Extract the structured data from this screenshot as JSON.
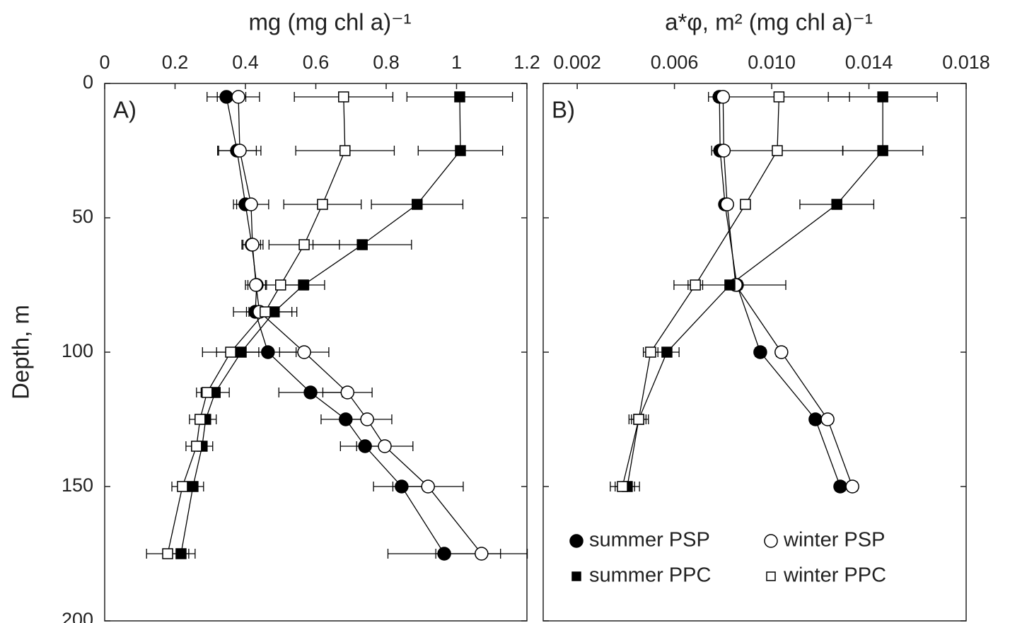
{
  "chart_data": [
    {
      "type": "line",
      "panel_label": "A)",
      "xlabel": "mg (mg chl a)⁻¹",
      "ylabel": "Depth, m",
      "xlim": [
        0,
        1.2
      ],
      "xticks": [
        0,
        0.2,
        0.4,
        0.6,
        0.8,
        1,
        1.2
      ],
      "ylim": [
        0,
        200
      ],
      "yticks": [
        0,
        50,
        100,
        150,
        200
      ],
      "y_inverted": true,
      "show_ytick_labels": true,
      "y": [
        5,
        25,
        45,
        60,
        75,
        85,
        100,
        115,
        125,
        135,
        150,
        175
      ],
      "series": [
        {
          "marker": "circle",
          "color": "#000000",
          "fill": "#000000",
          "values": [
            0.346,
            0.376,
            0.4,
            0.418,
            0.432,
            0.428,
            0.464,
            0.585,
            0.685,
            0.74,
            0.844,
            0.965
          ],
          "errors": [
            0.055,
            0.055,
            0.025,
            0.025,
            0.025,
            0.025,
            0.08,
            0.09,
            0.07,
            0.07,
            0.08,
            0.16
          ]
        },
        {
          "marker": "circle",
          "color": "#000000",
          "fill": "#ffffff",
          "values": [
            0.38,
            0.384,
            0.416,
            0.42,
            0.43,
            0.44,
            0.567,
            0.69,
            0.746,
            0.796,
            0.919,
            1.071
          ],
          "errors": [
            0.06,
            0.06,
            0.05,
            0.03,
            0.03,
            0.03,
            0.07,
            0.07,
            0.07,
            0.08,
            0.1,
            0.13
          ]
        },
        {
          "marker": "square",
          "color": "#000000",
          "fill": "#000000",
          "values": [
            1.009,
            1.011,
            0.888,
            0.732,
            0.565,
            0.482,
            0.388,
            0.314,
            0.287,
            0.277,
            0.251,
            0.217
          ],
          "errors": [
            0.15,
            0.12,
            0.13,
            0.14,
            0.06,
            0.05,
            0.07,
            0.04,
            0.03,
            0.03,
            0.03,
            0.04
          ]
        },
        {
          "marker": "square",
          "color": "#000000",
          "fill": "#ffffff",
          "values": [
            0.679,
            0.683,
            0.619,
            0.567,
            0.5,
            0.456,
            0.358,
            0.291,
            0.271,
            0.261,
            0.221,
            0.179
          ],
          "errors": [
            0.14,
            0.14,
            0.11,
            0.1,
            0.08,
            0.09,
            0.08,
            0.03,
            0.03,
            0.03,
            0.03,
            0.06
          ]
        }
      ]
    },
    {
      "type": "line",
      "panel_label": "B)",
      "xlabel": "a*φ, m² (mg chl a)⁻¹",
      "xlim": [
        0.0006,
        0.018
      ],
      "xticks": [
        0.002,
        0.006,
        {
          "value": 0.01,
          "label": "0.010"
        },
        0.014,
        0.018
      ],
      "ylim": [
        0,
        200
      ],
      "yticks": [
        0,
        50,
        100,
        150,
        200
      ],
      "y_inverted": true,
      "show_ytick_labels": false,
      "legend": "lower center",
      "y": [
        5,
        25,
        45,
        75,
        100,
        125,
        150
      ],
      "series": [
        {
          "name": "summer PSP",
          "marker": "circle",
          "color": "#000000",
          "fill": "#000000",
          "values": [
            0.00785,
            0.00788,
            0.00808,
            0.00857,
            0.00953,
            0.0118,
            0.01282
          ],
          "errors": [
            0.0002,
            0.0002,
            0.0002,
            0.0002,
            0.0002,
            0.0002,
            0.0002
          ]
        },
        {
          "name": "winter PSP",
          "marker": "circle",
          "color": "#000000",
          "fill": "#ffffff",
          "values": [
            0.008,
            0.00803,
            0.00817,
            0.00852,
            0.0104,
            0.0123,
            0.01332
          ],
          "errors": [
            0.0002,
            0.0002,
            0.0002,
            0.0002,
            0.0002,
            0.0002,
            0.0002
          ]
        },
        {
          "name": "summer PPC",
          "marker": "square",
          "color": "#000000",
          "fill": "#000000",
          "values": [
            0.01457,
            0.01457,
            0.01268,
            0.00828,
            0.00569,
            0.00453,
            0.00406
          ],
          "errors": [
            0.00224,
            0.00165,
            0.00152,
            0.0023,
            0.0005,
            0.0004,
            0.0005
          ]
        },
        {
          "name": "winter PPC",
          "marker": "square",
          "color": "#000000",
          "fill": "#ffffff",
          "values": [
            0.0103,
            0.01023,
            0.00892,
            0.00686,
            0.00502,
            0.00453,
            0.00386
          ],
          "errors": [
            0.0029,
            0.0027,
            0.0002,
            0.0003,
            0.0003,
            0.0003,
            0.0005
          ]
        }
      ]
    }
  ]
}
